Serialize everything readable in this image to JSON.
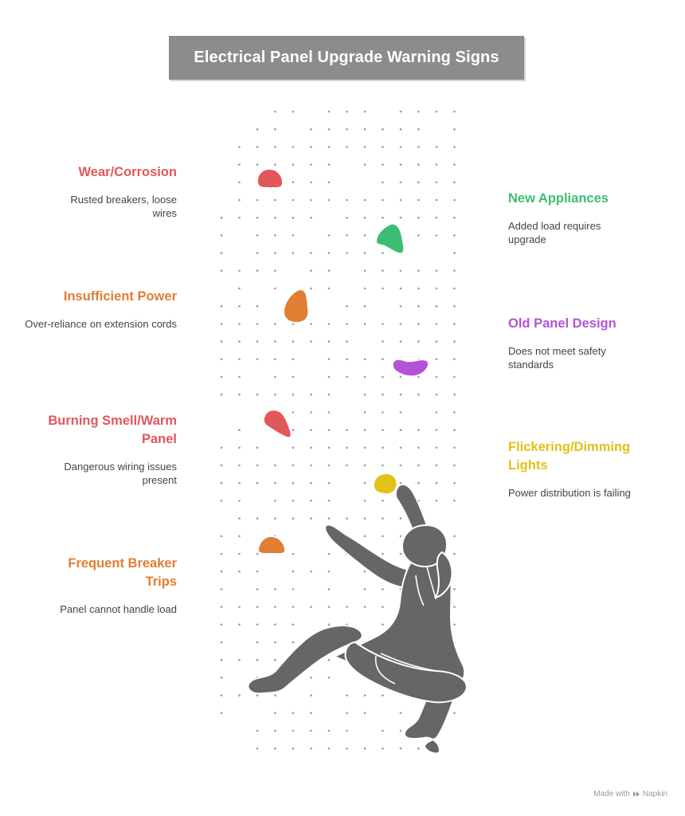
{
  "title": "Electrical Panel Upgrade Warning Signs",
  "colors": {
    "red": "#E2575A",
    "green": "#3DBE74",
    "orange": "#E07E33",
    "purple": "#B551D8",
    "yellow": "#E0C218",
    "figure": "#666666",
    "title_bg": "#8C8C8C"
  },
  "left_items": [
    {
      "heading": "Wear/Corrosion",
      "description": "Rusted breakers, loose wires",
      "color": "#E2575A"
    },
    {
      "heading": "Insufficient Power",
      "description": "Over-reliance on extension cords",
      "color": "#E07E33"
    },
    {
      "heading": "Burning Smell/Warm Panel",
      "description": "Dangerous wiring issues present",
      "color": "#E2575A"
    },
    {
      "heading": "Frequent Breaker Trips",
      "description": "Panel cannot handle load",
      "color": "#E07E33"
    }
  ],
  "right_items": [
    {
      "heading": "New Appliances",
      "description": "Added load requires upgrade",
      "color": "#3DBE74"
    },
    {
      "heading": "Old Panel Design",
      "description": "Does not meet safety standards",
      "color": "#B551D8"
    },
    {
      "heading": "Flickering/Dimming Lights",
      "description": "Power distribution is failing",
      "color": "#E0C218"
    }
  ],
  "footer": {
    "made_with": "Made with",
    "brand": "Napkin"
  }
}
